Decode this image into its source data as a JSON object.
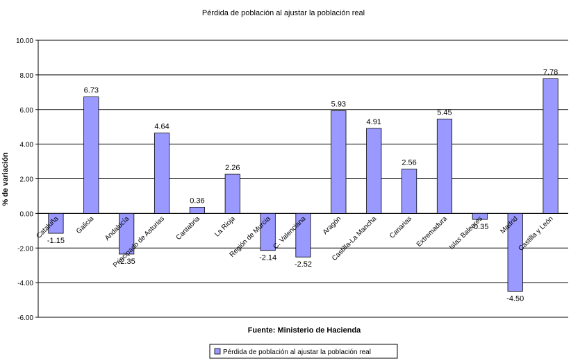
{
  "chart_data": {
    "type": "bar",
    "title": "Pérdida de población al ajustar la población real",
    "ylabel": "% de variación",
    "xlabel": "Fuente: Ministerio de Hacienda",
    "ylim": [
      -6,
      10
    ],
    "yticks": [
      "-6.00",
      "-4.00",
      "-2.00",
      "0.00",
      "2.00",
      "4.00",
      "6.00",
      "8.00",
      "10.00"
    ],
    "grid": true,
    "legend_position": "bottom",
    "bar_color": "#9999ff",
    "categories": [
      "Cataluña",
      "Galicia",
      "Andalucía",
      "Principado de Asturias",
      "Cantabria",
      "La Rioja",
      "Región de Murcia",
      "C. Valenciana",
      "Aragón",
      "Castilla-La Mancha",
      "Canarias",
      "Extremadura",
      "Islas Baleares",
      "Madrid",
      "Castilla y León"
    ],
    "series": [
      {
        "name": "Pérdida de población al ajustar la población real",
        "values": [
          -1.15,
          6.73,
          -2.35,
          4.64,
          0.36,
          2.26,
          -2.14,
          -2.52,
          5.93,
          4.91,
          2.56,
          5.45,
          -0.35,
          -4.5,
          7.78
        ],
        "labels": [
          "-1.15",
          "6.73",
          "-2.35",
          "4.64",
          "0.36",
          "2.26",
          "-2.14",
          "-2.52",
          "5.93",
          "4.91",
          "2.56",
          "5.45",
          "-0.35",
          "-4.50",
          "7.78"
        ]
      }
    ]
  }
}
